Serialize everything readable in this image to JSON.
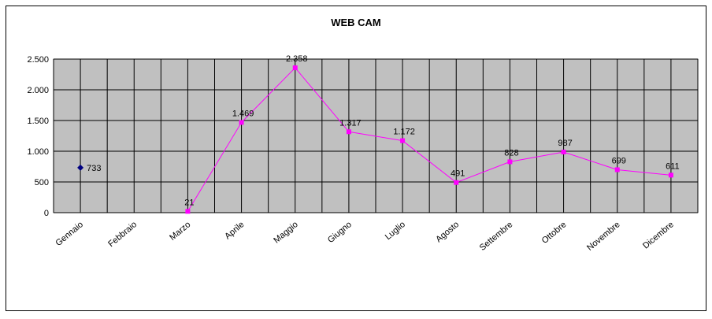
{
  "chart_data": {
    "type": "line",
    "title": "WEB CAM",
    "categories": [
      "Gennaio",
      "Febbraio",
      "Marzo",
      "Aprile",
      "Maggio",
      "Giugno",
      "Luglio",
      "Agosto",
      "Settembre",
      "Ottobre",
      "Novembre",
      "Dicembre"
    ],
    "series": [
      {
        "color": "#000080",
        "values": [
          733,
          null,
          null,
          null,
          null,
          null,
          null,
          null,
          null,
          null,
          null,
          null
        ],
        "value_labels": [
          "733",
          null,
          null,
          null,
          null,
          null,
          null,
          null,
          null,
          null,
          null,
          null
        ]
      },
      {
        "color": "#ff00ff",
        "values": [
          null,
          null,
          21,
          1469,
          2358,
          1317,
          1172,
          491,
          828,
          987,
          699,
          611
        ],
        "value_labels": [
          null,
          null,
          "21",
          "1.469",
          "2.358",
          "1.317",
          "1.172",
          "491",
          "828",
          "987",
          "699",
          "611"
        ]
      }
    ],
    "ylim": [
      0,
      2500
    ],
    "yticks": [
      0,
      {
        "value": 500,
        "label": "500"
      },
      {
        "value": 1000,
        "label": "1.000"
      },
      {
        "value": 1500,
        "label": "1.500"
      },
      {
        "value": 2000,
        "label": "2.000"
      },
      {
        "value": 2500,
        "label": "2.500"
      }
    ],
    "grid": true
  }
}
